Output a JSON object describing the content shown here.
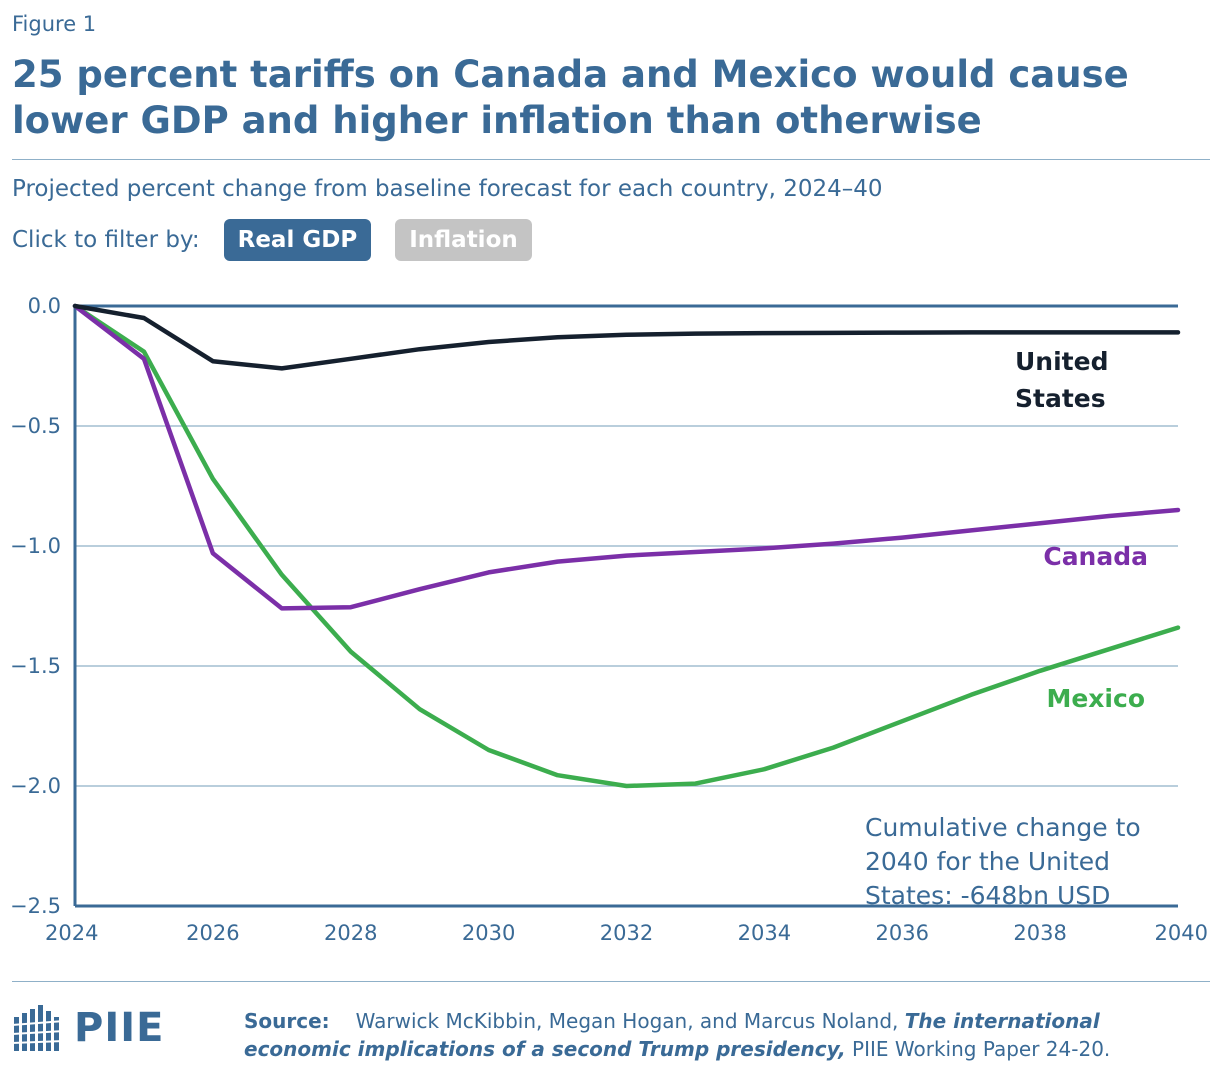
{
  "header": {
    "figure_label": "Figure 1",
    "title": "25 percent tariffs on Canada and Mexico would cause lower GDP and higher inflation than otherwise",
    "subtitle": "Projected percent change from baseline forecast for each country, 2024–40"
  },
  "filter": {
    "label": "Click to filter by:",
    "options": [
      {
        "label": "Real GDP",
        "active": true
      },
      {
        "label": "Inflation",
        "active": false
      }
    ]
  },
  "chart_data": {
    "type": "line",
    "title": "",
    "xlabel": "",
    "ylabel": "",
    "x": [
      2024,
      2025,
      2026,
      2027,
      2028,
      2029,
      2030,
      2031,
      2032,
      2033,
      2034,
      2035,
      2036,
      2037,
      2038,
      2039,
      2040
    ],
    "xlim": [
      2024,
      2040
    ],
    "ylim": [
      -2.5,
      0.0
    ],
    "x_ticks": [
      "2024",
      "2026",
      "2028",
      "2030",
      "2032",
      "2034",
      "2036",
      "2038",
      "2040"
    ],
    "y_ticks": [
      "0.0",
      "−0.5",
      "−1.0",
      "−1.5",
      "−2.0",
      "−2.5"
    ],
    "grid": "horizontal",
    "series": [
      {
        "name": "United States",
        "color": "#15202e",
        "values": [
          0.0,
          -0.05,
          -0.23,
          -0.26,
          -0.22,
          -0.18,
          -0.15,
          -0.13,
          -0.12,
          -0.115,
          -0.113,
          -0.112,
          -0.111,
          -0.11,
          -0.11,
          -0.11,
          -0.11
        ]
      },
      {
        "name": "Canada",
        "color": "#7b2fa8",
        "values": [
          0.0,
          -0.22,
          -1.03,
          -1.26,
          -1.255,
          -1.18,
          -1.11,
          -1.065,
          -1.04,
          -1.025,
          -1.01,
          -0.99,
          -0.965,
          -0.935,
          -0.905,
          -0.875,
          -0.85
        ]
      },
      {
        "name": "Mexico",
        "color": "#3cad4e",
        "values": [
          0.0,
          -0.19,
          -0.72,
          -1.12,
          -1.44,
          -1.68,
          -1.85,
          -1.955,
          -2.0,
          -1.99,
          -1.93,
          -1.84,
          -1.73,
          -1.62,
          -1.52,
          -1.43,
          -1.34
        ]
      }
    ],
    "annotation": "Cumulative change to 2040 for the United States: -648bn USD"
  },
  "footer": {
    "logo_text": "PIIE",
    "source_label": "Source:",
    "source_authors": "Warwick McKibbin, Megan Hogan, and Marcus Noland,",
    "source_title": "The international economic implications of a second Trump presidency,",
    "source_suffix": "PIIE Working Paper 24-20."
  }
}
